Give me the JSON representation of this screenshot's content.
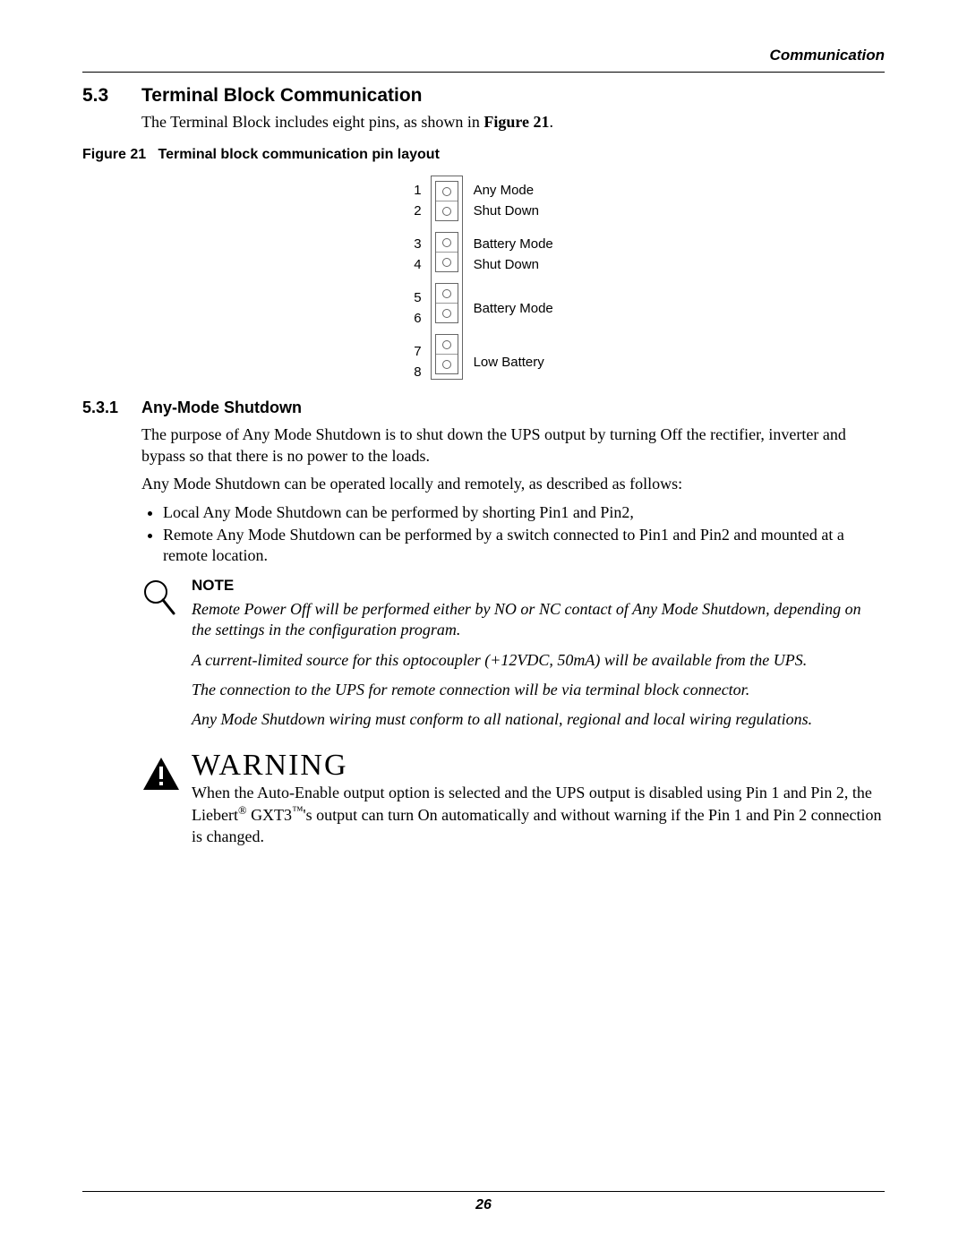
{
  "header": {
    "right": "Communication"
  },
  "section": {
    "num": "5.3",
    "title": "Terminal Block Communication",
    "intro_pre": "The Terminal Block includes eight pins, as shown in ",
    "intro_ref": "Figure 21",
    "intro_post": "."
  },
  "figure": {
    "caption_prefix": "Figure 21",
    "caption_rest": "Terminal block communication pin layout",
    "groups": [
      {
        "pins": [
          "1",
          "2"
        ],
        "labels": [
          "Any Mode",
          "Shut Down"
        ],
        "label_align": "rows",
        "gap_after": 14
      },
      {
        "pins": [
          "3",
          "4"
        ],
        "labels": [
          "Battery Mode",
          "Shut Down"
        ],
        "label_align": "rows",
        "gap_after": 14
      },
      {
        "pins": [
          "5",
          "6"
        ],
        "labels": [
          "Battery Mode"
        ],
        "label_align": "center",
        "gap_after": 14
      },
      {
        "pins": [
          "7",
          "8"
        ],
        "labels": [
          "Low Battery"
        ],
        "label_align": "center",
        "gap_after": 0
      }
    ]
  },
  "subsection": {
    "num": "5.3.1",
    "title": "Any-Mode Shutdown",
    "p1": "The purpose of Any Mode Shutdown is to shut down the UPS output by turning Off the rectifier, inverter and bypass so that there is no power to the loads.",
    "p2": "Any Mode Shutdown can be operated locally and remotely, as described as follows:",
    "bullets": [
      "Local Any Mode Shutdown can be performed by shorting Pin1 and Pin2,",
      "Remote Any Mode Shutdown can be performed by a switch connected to Pin1 and Pin2 and mounted at a remote location."
    ]
  },
  "note": {
    "head": "NOTE",
    "paras": [
      "Remote Power Off will be performed either by NO or NC contact of Any Mode Shutdown, depending on the settings in the configuration program.",
      "A current-limited source for this optocoupler (+12VDC, 50mA) will be available from the UPS.",
      "The connection to the UPS for remote connection will be via terminal block connector.",
      "Any Mode Shutdown wiring must conform to all national, regional and local wiring regulations."
    ]
  },
  "warning": {
    "title": "WARNING",
    "body_html": "When the Auto-Enable output option is selected and the UPS output is disabled using Pin 1 and Pin 2, the Liebert<sup>®</sup> GXT3<sup>™</sup>'s output can turn On automatically and without warning if the Pin 1 and Pin 2 connection is changed."
  },
  "footer": {
    "page": "26"
  }
}
